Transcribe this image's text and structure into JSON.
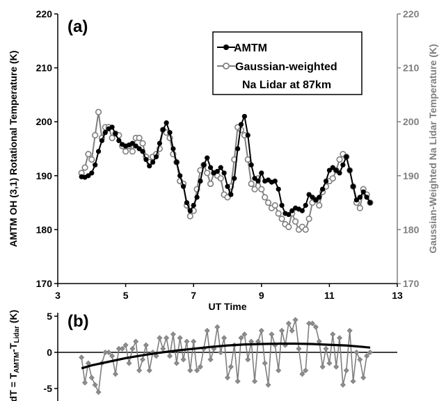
{
  "chart_data": [
    {
      "panel_label": "(a)",
      "type": "line",
      "xlabel": "UT  Time",
      "ylabel_left": "AMTM OH (3,1) Rotational Temperature (K)",
      "ylabel_right": "Gaussian-Weighted Na Lidar Temperature (K)",
      "xlim": [
        3,
        13
      ],
      "ylim": [
        170,
        220
      ],
      "x_ticks": [
        "3",
        "5",
        "7",
        "9",
        "11",
        "13"
      ],
      "y_ticks": [
        "170",
        "180",
        "190",
        "200",
        "210",
        "220"
      ],
      "legend": {
        "placement": "top-right",
        "entries": [
          "AMTM",
          "Gaussian-weighted",
          "Na Lidar at 87km"
        ]
      },
      "series": [
        {
          "name": "AMTM",
          "color": "#000000",
          "marker": "filled-circle",
          "x": [
            3.7,
            3.8,
            3.9,
            4.0,
            4.1,
            4.2,
            4.3,
            4.4,
            4.5,
            4.6,
            4.7,
            4.8,
            4.9,
            5.0,
            5.1,
            5.2,
            5.3,
            5.4,
            5.5,
            5.6,
            5.7,
            5.8,
            5.9,
            6.0,
            6.1,
            6.2,
            6.3,
            6.4,
            6.5,
            6.6,
            6.7,
            6.8,
            6.9,
            7.0,
            7.1,
            7.2,
            7.3,
            7.4,
            7.5,
            7.6,
            7.7,
            7.8,
            7.9,
            8.0,
            8.1,
            8.2,
            8.3,
            8.4,
            8.5,
            8.6,
            8.7,
            8.8,
            8.9,
            9.0,
            9.1,
            9.2,
            9.3,
            9.4,
            9.5,
            9.6,
            9.7,
            9.8,
            9.9,
            10.0,
            10.1,
            10.2,
            10.3,
            10.4,
            10.5,
            10.6,
            10.7,
            10.8,
            10.9,
            11.0,
            11.1,
            11.2,
            11.3,
            11.4,
            11.5,
            11.6,
            11.7,
            11.8,
            11.9,
            12.0,
            12.1,
            12.2
          ],
          "y": [
            189.8,
            189.7,
            190.0,
            190.5,
            192.0,
            194.5,
            196.5,
            198.0,
            198.7,
            199.0,
            197.8,
            196.5,
            195.8,
            195.5,
            195.7,
            196.0,
            195.5,
            195.0,
            194.5,
            193.0,
            191.8,
            192.5,
            193.5,
            196.0,
            198.5,
            199.8,
            198.0,
            195.0,
            192.5,
            190.0,
            188.0,
            185.0,
            183.5,
            184.5,
            186.0,
            189.0,
            192.0,
            193.3,
            191.5,
            190.5,
            190.8,
            191.5,
            190.5,
            188.0,
            186.5,
            189.5,
            195.0,
            199.5,
            201.0,
            197.5,
            192.0,
            189.5,
            189.0,
            190.5,
            189.0,
            189.2,
            188.8,
            189.0,
            187.5,
            184.5,
            183.0,
            182.8,
            183.5,
            184.0,
            183.8,
            183.5,
            184.5,
            186.5,
            186.0,
            185.5,
            186.0,
            187.5,
            189.0,
            191.0,
            191.5,
            191.0,
            190.5,
            192.0,
            193.5,
            191.0,
            188.0,
            185.5,
            186.0,
            187.0,
            186.0,
            185.0
          ]
        },
        {
          "name": "Gaussian-weighted",
          "color": "#7f7f7f",
          "marker": "open-circle",
          "x": [
            3.7,
            3.8,
            3.9,
            4.0,
            4.1,
            4.2,
            4.3,
            4.4,
            4.5,
            4.6,
            4.7,
            4.8,
            4.9,
            5.0,
            5.1,
            5.2,
            5.3,
            5.4,
            5.5,
            5.6,
            5.7,
            5.8,
            5.9,
            6.0,
            6.1,
            6.2,
            6.3,
            6.4,
            6.5,
            6.6,
            6.7,
            6.8,
            6.9,
            7.0,
            7.1,
            7.2,
            7.3,
            7.4,
            7.5,
            7.6,
            7.7,
            7.8,
            7.9,
            8.0,
            8.1,
            8.2,
            8.3,
            8.4,
            8.5,
            8.6,
            8.7,
            8.8,
            8.9,
            9.0,
            9.1,
            9.2,
            9.3,
            9.4,
            9.5,
            9.6,
            9.7,
            9.8,
            9.9,
            10.0,
            10.1,
            10.2,
            10.3,
            10.4,
            10.5,
            10.6,
            10.7,
            10.8,
            10.9,
            11.0,
            11.1,
            11.2,
            11.3,
            11.4,
            11.5,
            11.6,
            11.7,
            11.8,
            11.9,
            12.0,
            12.1,
            12.2
          ],
          "y": [
            190.5,
            191.5,
            194.0,
            193.0,
            197.5,
            201.8,
            197.0,
            199.0,
            199.0,
            197.0,
            197.8,
            197.5,
            195.5,
            194.5,
            195.5,
            194.5,
            197.0,
            197.0,
            196.0,
            193.5,
            192.5,
            193.5,
            194.0,
            195.0,
            198.5,
            198.0,
            197.0,
            194.0,
            192.5,
            189.0,
            188.5,
            184.5,
            182.5,
            183.5,
            187.5,
            191.0,
            192.0,
            190.5,
            188.5,
            190.5,
            190.0,
            189.5,
            186.5,
            186.0,
            188.0,
            193.0,
            199.0,
            198.5,
            197.5,
            193.0,
            188.5,
            187.5,
            189.5,
            187.5,
            186.0,
            185.0,
            184.0,
            184.5,
            183.0,
            182.0,
            181.0,
            180.5,
            183.0,
            181.5,
            180.0,
            180.5,
            180.0,
            182.0,
            185.0,
            185.5,
            184.5,
            187.0,
            188.0,
            189.0,
            189.5,
            191.0,
            193.0,
            194.0,
            193.5,
            191.0,
            188.0,
            185.0,
            184.0,
            187.5,
            186.5,
            185.0
          ]
        }
      ]
    },
    {
      "panel_label": "(b)",
      "type": "line",
      "ylabel_prefix": "dT = T",
      "ylabel_sub1": "AMTM",
      "ylabel_mid": "-T",
      "ylabel_sub2": "Lidar",
      "ylabel_suffix": " (K)",
      "ylim": [
        -6,
        5
      ],
      "y_ticks": [
        "5",
        "0",
        "-5"
      ],
      "series": [
        {
          "name": "dT",
          "color": "#7f7f7f",
          "marker": "diamond",
          "x": [
            3.7,
            3.8,
            3.9,
            4.0,
            4.1,
            4.2,
            4.3,
            4.4,
            4.5,
            4.6,
            4.7,
            4.8,
            4.9,
            5.0,
            5.1,
            5.2,
            5.3,
            5.4,
            5.5,
            5.6,
            5.7,
            5.8,
            5.9,
            6.0,
            6.1,
            6.2,
            6.3,
            6.4,
            6.5,
            6.6,
            6.7,
            6.8,
            6.9,
            7.0,
            7.1,
            7.2,
            7.3,
            7.4,
            7.5,
            7.6,
            7.7,
            7.8,
            7.9,
            8.0,
            8.1,
            8.2,
            8.3,
            8.4,
            8.5,
            8.6,
            8.7,
            8.8,
            8.9,
            9.0,
            9.1,
            9.2,
            9.3,
            9.4,
            9.5,
            9.6,
            9.7,
            9.8,
            9.9,
            10.0,
            10.1,
            10.2,
            10.3,
            10.4,
            10.5,
            10.6,
            10.7,
            10.8,
            10.9,
            11.0,
            11.1,
            11.2,
            11.3,
            11.4,
            11.5,
            11.6,
            11.7,
            11.8,
            11.9,
            12.0,
            12.1,
            12.2
          ],
          "y": [
            -0.7,
            -4.2,
            -1.5,
            -3.5,
            -4.5,
            -5.5,
            -1.5,
            0.0,
            0.0,
            -0.5,
            -3.0,
            0.5,
            0.5,
            1.0,
            -1.5,
            0.5,
            1.5,
            -2.5,
            -1.0,
            1.0,
            -2.5,
            0.0,
            -0.5,
            2.0,
            0.5,
            2.0,
            -0.5,
            2.5,
            -1.5,
            2.0,
            -1.0,
            1.5,
            -2.5,
            1.5,
            -2.5,
            -2.0,
            0.5,
            3.0,
            -1.0,
            0.5,
            3.5,
            0.0,
            2.0,
            -3.5,
            -2.0,
            1.0,
            -4.0,
            2.0,
            2.5,
            -1.0,
            1.5,
            -4.0,
            1.5,
            3.0,
            -1.5,
            -4.5,
            2.5,
            1.0,
            -2.5,
            3.0,
            1.0,
            4.0,
            3.0,
            4.5,
            0.5,
            -3.0,
            -2.5,
            4.0,
            4.0,
            3.5,
            1.5,
            -2.0,
            0.5,
            -1.5,
            2.5,
            -2.0,
            2.0,
            -4.5,
            -2.5,
            3.0,
            -4.0,
            0.0,
            -1.0,
            -3.5,
            -0.5,
            0.0
          ]
        },
        {
          "name": "fit",
          "color": "#000000",
          "marker": "none",
          "x": [
            3.7,
            4.0,
            4.5,
            5.0,
            5.5,
            6.0,
            6.5,
            7.0,
            7.5,
            8.0,
            8.5,
            9.0,
            9.5,
            10.0,
            10.5,
            11.0,
            11.5,
            12.0,
            12.2
          ],
          "y": [
            -2.2,
            -1.8,
            -1.3,
            -0.8,
            -0.4,
            -0.05,
            0.25,
            0.5,
            0.75,
            0.95,
            1.1,
            1.15,
            1.2,
            1.2,
            1.15,
            1.05,
            0.95,
            0.75,
            0.65
          ]
        }
      ]
    }
  ]
}
